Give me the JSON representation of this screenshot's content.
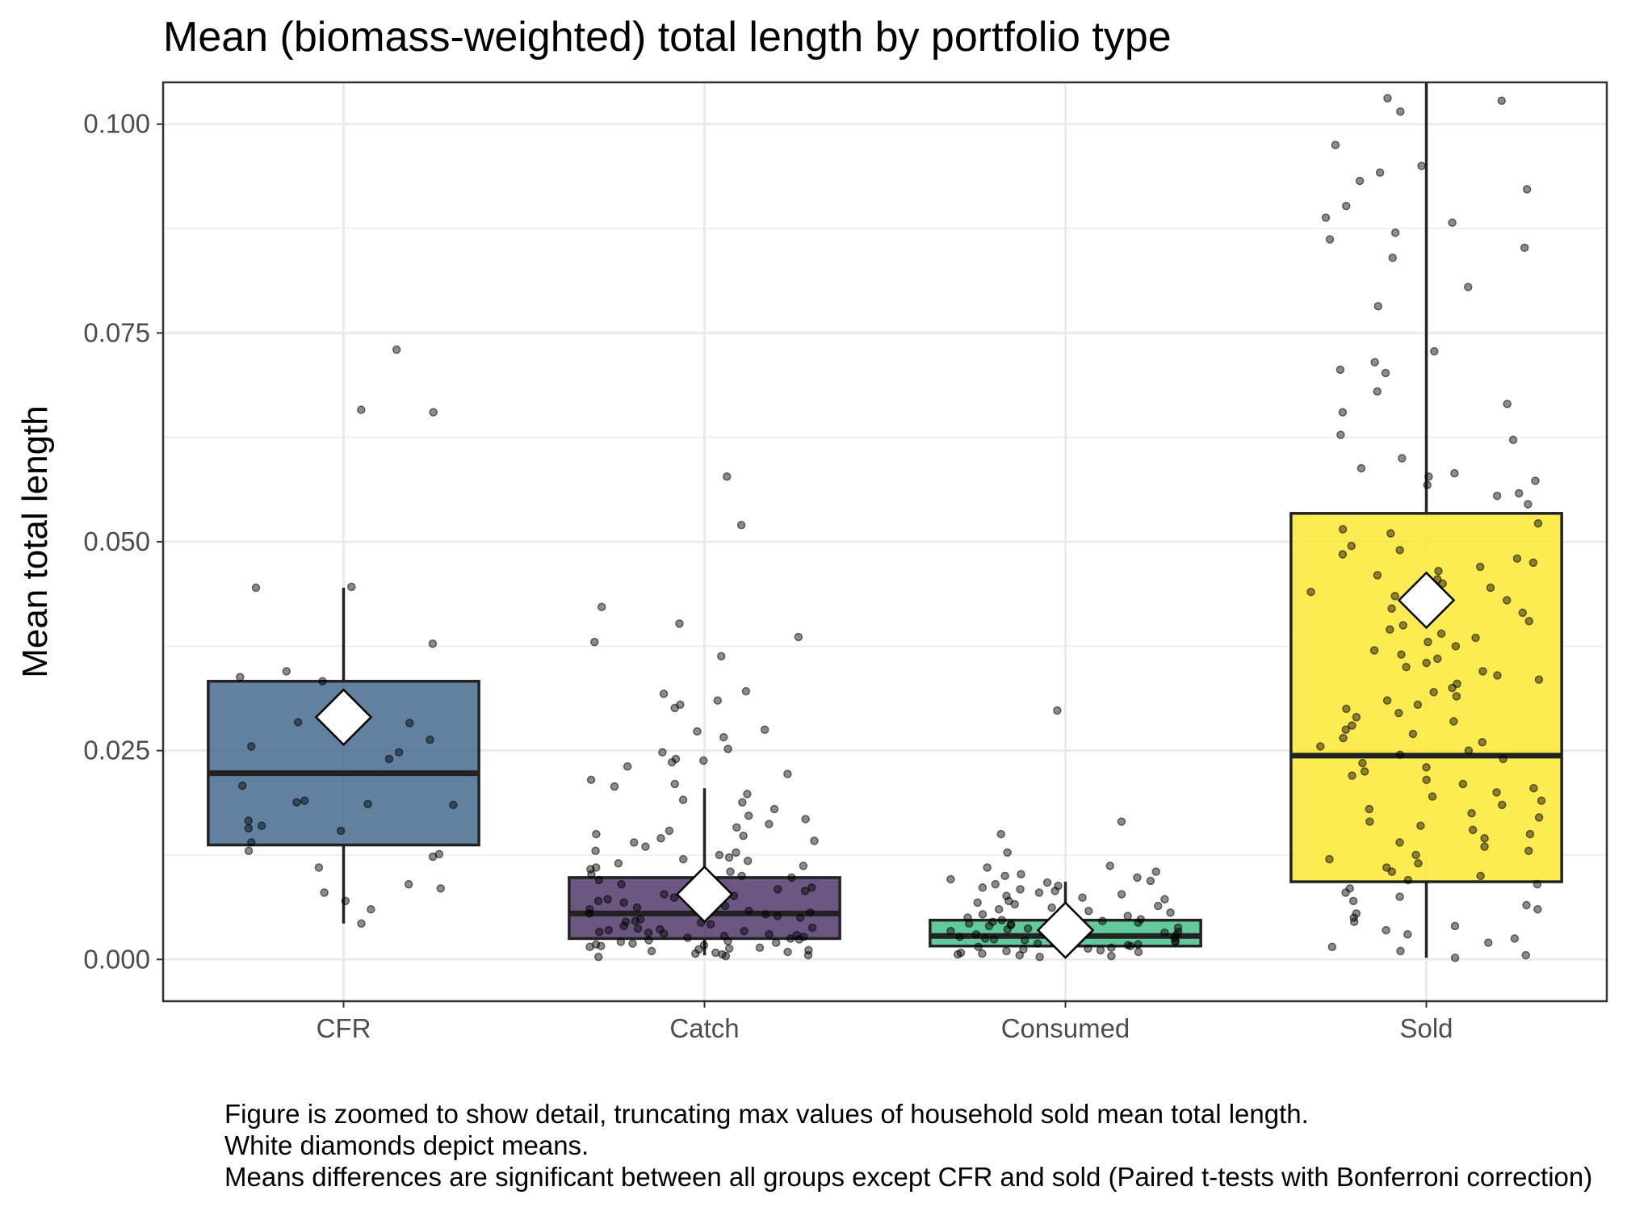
{
  "chart_data": {
    "type": "box",
    "title": "Mean (biomass-weighted) total length by portfolio type",
    "xlabel": "",
    "ylabel": "Mean total length",
    "ylim": [
      -0.005,
      0.105
    ],
    "yticks": [
      "0.000",
      "0.025",
      "0.050",
      "0.075",
      "0.100"
    ],
    "categories": [
      "CFR",
      "Catch",
      "Consumed",
      "Sold"
    ],
    "grid": true,
    "legend": "none",
    "boxes": [
      {
        "name": "CFR",
        "color": "#3b6289",
        "whisker_low": 0.0043,
        "q1": 0.0137,
        "median": 0.0223,
        "q3": 0.0333,
        "whisker_high": 0.0445,
        "mean": 0.029
      },
      {
        "name": "Catch",
        "color": "#472c63",
        "whisker_low": 0.0005,
        "q1": 0.0025,
        "median": 0.0055,
        "q3": 0.0098,
        "whisker_high": 0.0205,
        "mean": 0.0078
      },
      {
        "name": "Consumed",
        "color": "#3cba82",
        "whisker_low": 0.0003,
        "q1": 0.0016,
        "median": 0.0028,
        "q3": 0.0047,
        "whisker_high": 0.0093,
        "mean": 0.0035
      },
      {
        "name": "Sold",
        "color": "#fde725",
        "whisker_low": 0.0002,
        "q1": 0.0093,
        "median": 0.0244,
        "q3": 0.0534,
        "whisker_high": 0.108,
        "mean": 0.043
      }
    ],
    "points": [
      {
        "group": "CFR",
        "values": [
          0.073,
          0.0658,
          0.0655,
          0.0446,
          0.0445,
          0.0378,
          0.0345,
          0.0338,
          0.0333,
          0.0284,
          0.0283,
          0.0263,
          0.0255,
          0.0248,
          0.024,
          0.0208,
          0.019,
          0.0188,
          0.0186,
          0.0185,
          0.0166,
          0.016,
          0.0157,
          0.0154,
          0.014,
          0.013,
          0.0126,
          0.0123,
          0.011,
          0.009,
          0.0085,
          0.008,
          0.007,
          0.006,
          0.0043
        ]
      },
      {
        "group": "Catch",
        "values": [
          0.0578,
          0.052,
          0.0422,
          0.0402,
          0.0386,
          0.038,
          0.0363,
          0.0321,
          0.0318,
          0.031,
          0.0305,
          0.0301,
          0.0275,
          0.0273,
          0.0266,
          0.0252,
          0.0248,
          0.024,
          0.0238,
          0.0236,
          0.0231,
          0.0222,
          0.0215,
          0.021,
          0.0207,
          0.0198,
          0.0191,
          0.0188,
          0.018,
          0.0172,
          0.0168,
          0.0162,
          0.0158,
          0.0154,
          0.015,
          0.0148,
          0.0145,
          0.0142,
          0.014,
          0.0135,
          0.013,
          0.0128,
          0.0125,
          0.0122,
          0.012,
          0.0118,
          0.0115,
          0.0112,
          0.011,
          0.0108,
          0.0105,
          0.0102,
          0.01,
          0.0098,
          0.0095,
          0.0092,
          0.009,
          0.0088,
          0.0086,
          0.0084,
          0.0082,
          0.008,
          0.0078,
          0.0076,
          0.0074,
          0.0072,
          0.007,
          0.0068,
          0.0066,
          0.0064,
          0.0062,
          0.006,
          0.0058,
          0.0056,
          0.0055,
          0.0054,
          0.0052,
          0.005,
          0.0048,
          0.0046,
          0.0045,
          0.0044,
          0.0042,
          0.004,
          0.0038,
          0.0037,
          0.0036,
          0.0035,
          0.0034,
          0.0033,
          0.0032,
          0.0031,
          0.003,
          0.0029,
          0.0028,
          0.0027,
          0.0026,
          0.0025,
          0.0024,
          0.0023,
          0.0022,
          0.0021,
          0.002,
          0.0019,
          0.0018,
          0.0017,
          0.0016,
          0.0015,
          0.0014,
          0.0013,
          0.0012,
          0.0011,
          0.001,
          0.0009,
          0.0008,
          0.0007,
          0.0006,
          0.0005,
          0.0004,
          0.0003
        ]
      },
      {
        "group": "Consumed",
        "values": [
          0.0298,
          0.0165,
          0.015,
          0.0128,
          0.0112,
          0.011,
          0.0105,
          0.0102,
          0.01,
          0.0098,
          0.0096,
          0.0094,
          0.0092,
          0.009,
          0.0088,
          0.0086,
          0.0084,
          0.0082,
          0.008,
          0.0078,
          0.0076,
          0.0074,
          0.0072,
          0.007,
          0.0068,
          0.0066,
          0.0064,
          0.0062,
          0.006,
          0.0058,
          0.0056,
          0.0054,
          0.0052,
          0.005,
          0.0049,
          0.0048,
          0.0047,
          0.0046,
          0.0045,
          0.0044,
          0.0043,
          0.0042,
          0.0041,
          0.004,
          0.0039,
          0.0038,
          0.0037,
          0.0036,
          0.0035,
          0.0034,
          0.0033,
          0.0032,
          0.0031,
          0.003,
          0.0029,
          0.0028,
          0.0027,
          0.0026,
          0.0025,
          0.0024,
          0.0023,
          0.0022,
          0.0021,
          0.002,
          0.0019,
          0.0018,
          0.0017,
          0.0016,
          0.0015,
          0.0014,
          0.0013,
          0.0012,
          0.0011,
          0.001,
          0.0009,
          0.0008,
          0.0007,
          0.0006,
          0.0005,
          0.0004,
          0.0003
        ]
      },
      {
        "group": "Sold",
        "values": [
          0.1031,
          0.1028,
          0.1015,
          0.0975,
          0.095,
          0.0942,
          0.0932,
          0.0922,
          0.0902,
          0.0888,
          0.0882,
          0.087,
          0.0862,
          0.0852,
          0.084,
          0.0805,
          0.0782,
          0.0728,
          0.0715,
          0.0706,
          0.0702,
          0.068,
          0.0665,
          0.0655,
          0.0628,
          0.0622,
          0.06,
          0.0588,
          0.0582,
          0.0578,
          0.0573,
          0.0568,
          0.0558,
          0.0555,
          0.0545,
          0.0522,
          0.0515,
          0.051,
          0.0495,
          0.049,
          0.0485,
          0.048,
          0.0475,
          0.047,
          0.0465,
          0.046,
          0.0455,
          0.045,
          0.0445,
          0.044,
          0.0435,
          0.043,
          0.0425,
          0.042,
          0.0415,
          0.041,
          0.0405,
          0.04,
          0.0395,
          0.039,
          0.0385,
          0.038,
          0.0375,
          0.037,
          0.0365,
          0.036,
          0.0355,
          0.035,
          0.0345,
          0.034,
          0.0335,
          0.033,
          0.0325,
          0.032,
          0.0315,
          0.031,
          0.0305,
          0.03,
          0.0295,
          0.029,
          0.0285,
          0.028,
          0.0275,
          0.027,
          0.0265,
          0.026,
          0.0255,
          0.025,
          0.0245,
          0.024,
          0.0235,
          0.023,
          0.0225,
          0.022,
          0.0215,
          0.021,
          0.0205,
          0.02,
          0.0195,
          0.019,
          0.0185,
          0.018,
          0.0175,
          0.017,
          0.0165,
          0.016,
          0.0155,
          0.015,
          0.0145,
          0.014,
          0.0135,
          0.013,
          0.0125,
          0.012,
          0.0115,
          0.011,
          0.0105,
          0.01,
          0.0095,
          0.009,
          0.0085,
          0.008,
          0.0075,
          0.007,
          0.0065,
          0.006,
          0.0055,
          0.005,
          0.0045,
          0.004,
          0.0035,
          0.003,
          0.0025,
          0.002,
          0.0015,
          0.001,
          0.0005,
          0.0002
        ]
      }
    ]
  },
  "caption": [
    "Figure is zoomed to show detail, truncating max values of household sold mean total length.",
    "White diamonds depict means.",
    "Means differences are significant between all groups except CFR and sold (Paired t-tests with Bonferroni correction)"
  ]
}
